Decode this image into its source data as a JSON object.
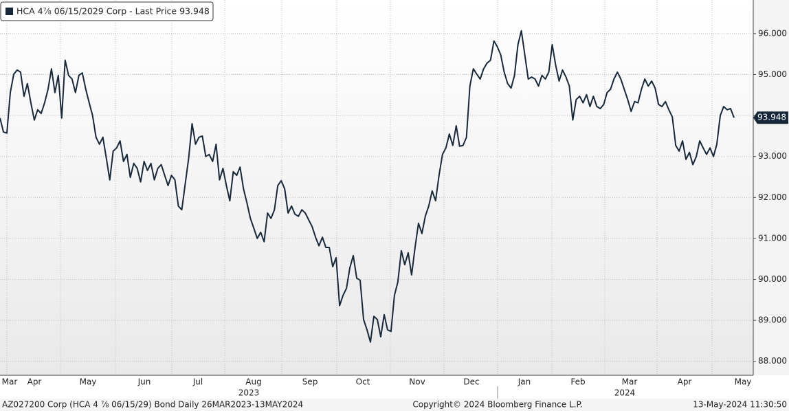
{
  "chart_data": {
    "type": "line",
    "title": "HCA 4⅞ 06/15/2029 Corp - Last Price 93.948",
    "series": [
      {
        "name": "HCA 4⅞ 06/15/2029 Corp",
        "color": "#16283a",
        "values": [
          93.94,
          93.6,
          93.57,
          94.56,
          95.01,
          95.11,
          95.06,
          94.47,
          94.78,
          94.31,
          93.89,
          94.14,
          94.05,
          94.31,
          94.64,
          95.14,
          94.56,
          94.98,
          93.94,
          95.35,
          94.98,
          94.89,
          94.56,
          94.98,
          95.04,
          94.64,
          94.31,
          94.0,
          93.47,
          93.3,
          93.47,
          92.96,
          92.43,
          93.13,
          93.21,
          93.38,
          92.88,
          93.05,
          92.49,
          92.83,
          92.71,
          92.38,
          92.88,
          92.66,
          92.83,
          92.43,
          92.71,
          92.8,
          92.54,
          92.29,
          92.54,
          92.43,
          91.79,
          91.7,
          92.33,
          92.96,
          93.8,
          93.3,
          93.47,
          93.5,
          93.0,
          93.05,
          92.88,
          93.3,
          92.43,
          92.71,
          92.29,
          91.92,
          92.63,
          92.54,
          92.74,
          92.21,
          91.87,
          91.49,
          91.25,
          91.0,
          91.15,
          90.92,
          91.62,
          91.49,
          91.7,
          92.29,
          92.41,
          92.21,
          91.62,
          91.79,
          91.59,
          91.54,
          91.7,
          91.62,
          91.45,
          91.29,
          91.03,
          90.82,
          91.03,
          90.78,
          90.78,
          90.31,
          90.53,
          89.36,
          89.61,
          89.78,
          90.28,
          90.58,
          90.03,
          89.98,
          89.02,
          88.77,
          88.47,
          89.1,
          89.02,
          88.6,
          89.14,
          88.77,
          88.73,
          89.61,
          89.94,
          90.7,
          90.36,
          90.65,
          90.11,
          90.78,
          91.37,
          91.12,
          91.54,
          91.79,
          92.16,
          91.92,
          92.54,
          93.05,
          93.21,
          93.55,
          93.27,
          93.75,
          93.25,
          93.27,
          93.47,
          94.72,
          95.14,
          95.01,
          94.89,
          95.14,
          95.28,
          95.35,
          95.82,
          95.68,
          95.48,
          95.06,
          94.78,
          94.67,
          94.98,
          95.73,
          96.07,
          95.48,
          94.89,
          94.94,
          94.89,
          94.72,
          94.98,
          94.89,
          95.06,
          95.73,
          95.23,
          94.84,
          95.11,
          94.94,
          94.72,
          93.89,
          94.39,
          94.47,
          94.31,
          94.51,
          94.22,
          94.47,
          94.22,
          94.17,
          94.27,
          94.56,
          94.64,
          94.89,
          95.06,
          94.89,
          94.64,
          94.39,
          94.1,
          94.34,
          94.31,
          94.64,
          94.89,
          94.72,
          94.84,
          94.67,
          94.27,
          94.22,
          94.34,
          94.14,
          93.97,
          93.27,
          93.13,
          93.38,
          92.93,
          93.1,
          92.8,
          93.0,
          93.38,
          93.21,
          93.05,
          93.21,
          93.0,
          93.3,
          94.0,
          94.22,
          94.14,
          94.17,
          93.948
        ]
      }
    ],
    "ylim": [
      87.66,
      96.82
    ],
    "yticks": [
      {
        "value": 88,
        "label": "88.000"
      },
      {
        "value": 89,
        "label": "89.000"
      },
      {
        "value": 90,
        "label": "90.000"
      },
      {
        "value": 91,
        "label": "91.000"
      },
      {
        "value": 92,
        "label": "92.000"
      },
      {
        "value": 93,
        "label": "93.000"
      },
      {
        "value": 94,
        "label": "94.000"
      },
      {
        "value": 95,
        "label": "95.000"
      },
      {
        "value": 96,
        "label": "96.000"
      }
    ],
    "months": [
      "Mar",
      "Apr",
      "May",
      "Jun",
      "Jul",
      "Aug",
      "Sep",
      "Oct",
      "Nov",
      "Dec",
      "Jan",
      "Feb",
      "Mar",
      "Apr",
      "May"
    ],
    "years": [
      "2023",
      "2024"
    ],
    "grid": true,
    "footer": {
      "left": "AZ027200 Corp (HCA 4 ⅞ 06/15/29) Bond  Daily 26MAR2023-13MAY2024",
      "center": "Copyright© 2024 Bloomberg Finance L.P.",
      "right": "13-May-2024 11:30:50"
    }
  }
}
